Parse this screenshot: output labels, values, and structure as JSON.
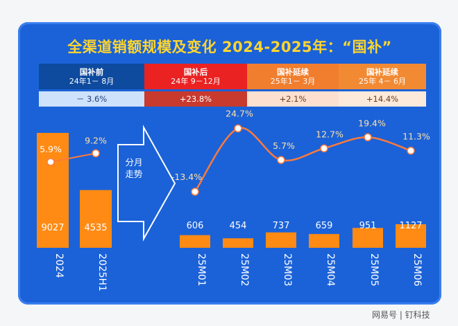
{
  "title": "全渠道销额规模及变化  2024-2025年：“国补”",
  "phases": [
    {
      "name": "国补前",
      "range": "24年1－ 8月",
      "change": "－ 3.6%"
    },
    {
      "name": "国补后",
      "range": "24年 9－12月",
      "change": "+23.8%"
    },
    {
      "name": "国补延续",
      "range": "25年1－ 3月",
      "change": "+2.1%"
    },
    {
      "name": "国补延续",
      "range": "25年 4－ 6月",
      "change": "+14.4%"
    }
  ],
  "arrow_label": "分月走势",
  "watermark": "网易号 | 钉科技",
  "colors": {
    "bar": "#ff8b14",
    "line": "#ff7a3a",
    "background": "#1b62d8",
    "title": "#ffd52e"
  },
  "chart_data": [
    {
      "type": "bar",
      "categories": [
        "2024",
        "2025H1"
      ],
      "values": [
        9027,
        4535
      ],
      "value_labels": [
        "9027",
        "4535"
      ],
      "growth": [
        5.9,
        9.2
      ],
      "growth_labels": [
        "5.9%",
        "9.2%"
      ]
    },
    {
      "type": "bar",
      "categories": [
        "25M01",
        "25M02",
        "25M03",
        "25M04",
        "25M05",
        "25M06"
      ],
      "values": [
        606,
        454,
        737,
        659,
        951,
        1127
      ],
      "value_labels": [
        "606",
        "454",
        "737",
        "659",
        "951",
        "1127"
      ],
      "growth": [
        -13.4,
        24.7,
        5.7,
        12.7,
        19.4,
        11.3
      ],
      "growth_labels": [
        "-13.4%",
        "24.7%",
        "5.7%",
        "12.7%",
        "19.4%",
        "11.3%"
      ]
    }
  ]
}
